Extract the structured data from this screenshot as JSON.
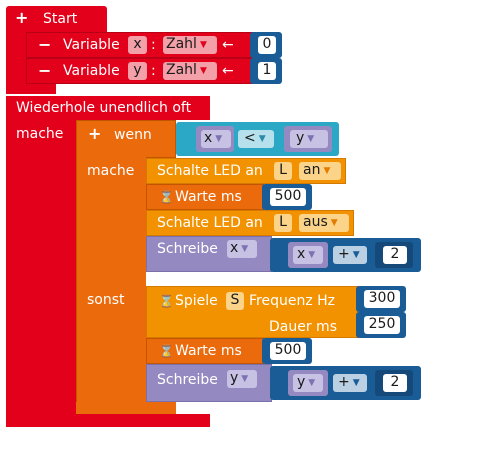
{
  "start": {
    "label": "Start",
    "plus": "+"
  },
  "vars": [
    {
      "minus": "−",
      "label": "Variable",
      "name": "x",
      "colon": ":",
      "type": "Zahl",
      "arrow": "←",
      "value": "0"
    },
    {
      "minus": "−",
      "label": "Variable",
      "name": "y",
      "colon": ":",
      "type": "Zahl",
      "arrow": "←",
      "value": "1"
    }
  ],
  "loop": {
    "title": "Wiederhole unendlich oft",
    "mache": "mache"
  },
  "if": {
    "plus": "+",
    "wenn": "wenn",
    "cond": {
      "left": "x",
      "op": "<",
      "right": "y"
    },
    "mache": "mache",
    "sonst": "sonst"
  },
  "then": {
    "led_on": {
      "label": "Schalte LED an",
      "pin": "L",
      "state": "an"
    },
    "wait": {
      "label": "Warte ms",
      "value": "500"
    },
    "led_off": {
      "label": "Schalte LED an",
      "pin": "L",
      "state": "aus"
    },
    "write": {
      "label": "Schreibe",
      "var": "x",
      "expr_var": "x",
      "op": "+",
      "num": "2"
    }
  },
  "else": {
    "play": {
      "label": "Spiele",
      "pin": "S",
      "freq_label": "Frequenz Hz",
      "freq": "300",
      "dur_label": "Dauer ms",
      "dur": "250"
    },
    "wait": {
      "label": "Warte ms",
      "value": "500"
    },
    "write": {
      "label": "Schreibe",
      "var": "y",
      "expr_var": "y",
      "op": "+",
      "num": "2"
    }
  },
  "icons": {
    "hourglass": "⌛",
    "dropdown": "▼"
  },
  "colors": {
    "red": "#e3001b",
    "orange": "#ea6a0c",
    "yellow": "#f39200",
    "purple": "#948ac1",
    "blue": "#1a5c96",
    "cyan": "#2ba8c6"
  }
}
